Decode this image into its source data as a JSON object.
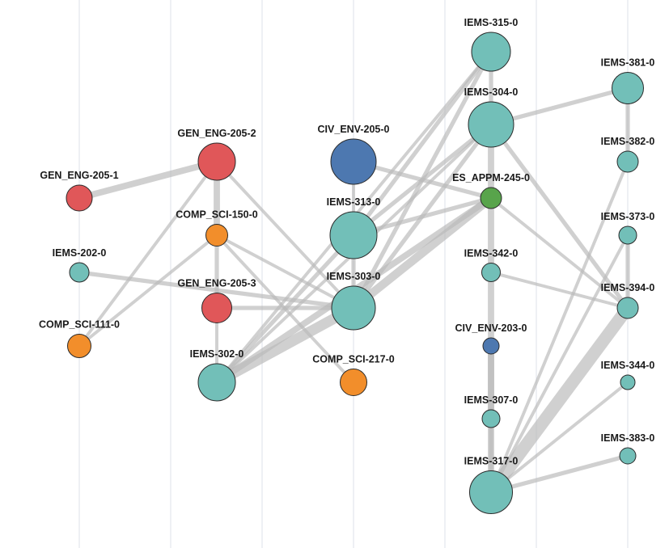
{
  "colors": {
    "red": "#e05759",
    "orange": "#f28e2b",
    "teal": "#72bfb8",
    "blue": "#4d78b0",
    "green": "#58a44b",
    "edge": "#b9b9b9",
    "grid": "#dde0ea"
  },
  "nodes": [
    {
      "id": "GEN_ENG-205-1",
      "label": "GEN_ENG-205-1",
      "color": "red",
      "weight": 2
    },
    {
      "id": "IEMS-202-0",
      "label": "IEMS-202-0",
      "color": "teal",
      "weight": 1
    },
    {
      "id": "COMP_SCI-111-0",
      "label": "COMP_SCI-111-0",
      "color": "orange",
      "weight": 1.5
    },
    {
      "id": "GEN_ENG-205-2",
      "label": "GEN_ENG-205-2",
      "color": "red",
      "weight": 4
    },
    {
      "id": "COMP_SCI-150-0",
      "label": "COMP_SCI-150-0",
      "color": "orange",
      "weight": 1.3
    },
    {
      "id": "GEN_ENG-205-3",
      "label": "GEN_ENG-205-3",
      "color": "red",
      "weight": 2.5
    },
    {
      "id": "IEMS-302-0",
      "label": "IEMS-302-0",
      "color": "teal",
      "weight": 4
    },
    {
      "id": "CIV_ENV-205-0",
      "label": "CIV_ENV-205-0",
      "color": "blue",
      "weight": 6
    },
    {
      "id": "IEMS-313-0",
      "label": "IEMS-313-0",
      "color": "teal",
      "weight": 6
    },
    {
      "id": "IEMS-303-0",
      "label": "IEMS-303-0",
      "color": "teal",
      "weight": 5.5
    },
    {
      "id": "COMP_SCI-217-0",
      "label": "COMP_SCI-217-0",
      "color": "orange",
      "weight": 2
    },
    {
      "id": "IEMS-315-0",
      "label": "IEMS-315-0",
      "color": "teal",
      "weight": 4.5
    },
    {
      "id": "IEMS-304-0",
      "label": "IEMS-304-0",
      "color": "teal",
      "weight": 6
    },
    {
      "id": "ES_APPM-245-0",
      "label": "ES_APPM-245-0",
      "color": "green",
      "weight": 1.3
    },
    {
      "id": "IEMS-342-0",
      "label": "IEMS-342-0",
      "color": "teal",
      "weight": 1
    },
    {
      "id": "CIV_ENV-203-0",
      "label": "CIV_ENV-203-0",
      "color": "blue",
      "weight": 0.8
    },
    {
      "id": "IEMS-307-0",
      "label": "IEMS-307-0",
      "color": "teal",
      "weight": 1
    },
    {
      "id": "IEMS-317-0",
      "label": "IEMS-317-0",
      "color": "teal",
      "weight": 5.5
    },
    {
      "id": "IEMS-381-0",
      "label": "IEMS-381-0",
      "color": "teal",
      "weight": 3.2
    },
    {
      "id": "IEMS-382-0",
      "label": "IEMS-382-0",
      "color": "teal",
      "weight": 1.5
    },
    {
      "id": "IEMS-373-0",
      "label": "IEMS-373-0",
      "color": "teal",
      "weight": 1
    },
    {
      "id": "IEMS-394-0",
      "label": "IEMS-394-0",
      "color": "teal",
      "weight": 1.5
    },
    {
      "id": "IEMS-344-0",
      "label": "IEMS-344-0",
      "color": "teal",
      "weight": 0.7
    },
    {
      "id": "IEMS-383-0",
      "label": "IEMS-383-0",
      "color": "teal",
      "weight": 0.9
    }
  ],
  "edges": [
    {
      "source": "GEN_ENG-205-1",
      "target": "GEN_ENG-205-2",
      "weight": 3
    },
    {
      "source": "IEMS-202-0",
      "target": "IEMS-303-0",
      "weight": 2
    },
    {
      "source": "COMP_SCI-111-0",
      "target": "GEN_ENG-205-2",
      "weight": 1.5
    },
    {
      "source": "COMP_SCI-111-0",
      "target": "COMP_SCI-150-0",
      "weight": 1.5
    },
    {
      "source": "GEN_ENG-205-2",
      "target": "COMP_SCI-150-0",
      "weight": 3
    },
    {
      "source": "COMP_SCI-150-0",
      "target": "GEN_ENG-205-3",
      "weight": 2
    },
    {
      "source": "GEN_ENG-205-2",
      "target": "IEMS-303-0",
      "weight": 1.5
    },
    {
      "source": "COMP_SCI-150-0",
      "target": "IEMS-303-0",
      "weight": 1.5
    },
    {
      "source": "COMP_SCI-150-0",
      "target": "COMP_SCI-217-0",
      "weight": 1.5
    },
    {
      "source": "GEN_ENG-205-3",
      "target": "IEMS-302-0",
      "weight": 1.5
    },
    {
      "source": "GEN_ENG-205-3",
      "target": "IEMS-303-0",
      "weight": 2
    },
    {
      "source": "IEMS-302-0",
      "target": "IEMS-313-0",
      "weight": 2
    },
    {
      "source": "IEMS-302-0",
      "target": "IEMS-303-0",
      "weight": 5
    },
    {
      "source": "IEMS-302-0",
      "target": "IEMS-315-0",
      "weight": 1.5
    },
    {
      "source": "IEMS-302-0",
      "target": "IEMS-304-0",
      "weight": 1.5
    },
    {
      "source": "IEMS-302-0",
      "target": "ES_APPM-245-0",
      "weight": 3
    },
    {
      "source": "CIV_ENV-205-0",
      "target": "IEMS-313-0",
      "weight": 1.5
    },
    {
      "source": "CIV_ENV-205-0",
      "target": "ES_APPM-245-0",
      "weight": 2
    },
    {
      "source": "IEMS-313-0",
      "target": "IEMS-303-0",
      "weight": 2
    },
    {
      "source": "IEMS-313-0",
      "target": "IEMS-315-0",
      "weight": 2
    },
    {
      "source": "IEMS-313-0",
      "target": "IEMS-304-0",
      "weight": 2
    },
    {
      "source": "IEMS-313-0",
      "target": "ES_APPM-245-0",
      "weight": 2
    },
    {
      "source": "IEMS-303-0",
      "target": "IEMS-315-0",
      "weight": 2
    },
    {
      "source": "IEMS-303-0",
      "target": "IEMS-304-0",
      "weight": 2
    },
    {
      "source": "IEMS-303-0",
      "target": "ES_APPM-245-0",
      "weight": 4
    },
    {
      "source": "IEMS-315-0",
      "target": "IEMS-304-0",
      "weight": 2
    },
    {
      "source": "IEMS-304-0",
      "target": "IEMS-381-0",
      "weight": 2
    },
    {
      "source": "IEMS-304-0",
      "target": "IEMS-394-0",
      "weight": 2
    },
    {
      "source": "IEMS-304-0",
      "target": "IEMS-317-0",
      "weight": 3
    },
    {
      "source": "ES_APPM-245-0",
      "target": "IEMS-394-0",
      "weight": 1.5
    },
    {
      "source": "IEMS-342-0",
      "target": "IEMS-394-0",
      "weight": 1.5
    },
    {
      "source": "CIV_ENV-203-0",
      "target": "IEMS-307-0",
      "weight": 3
    },
    {
      "source": "IEMS-307-0",
      "target": "IEMS-317-0",
      "weight": 2
    },
    {
      "source": "IEMS-317-0",
      "target": "IEMS-382-0",
      "weight": 1.5
    },
    {
      "source": "IEMS-317-0",
      "target": "IEMS-373-0",
      "weight": 1.5
    },
    {
      "source": "IEMS-317-0",
      "target": "IEMS-394-0",
      "weight": 6
    },
    {
      "source": "IEMS-317-0",
      "target": "IEMS-344-0",
      "weight": 1.5
    },
    {
      "source": "IEMS-317-0",
      "target": "IEMS-383-0",
      "weight": 2
    },
    {
      "source": "IEMS-381-0",
      "target": "IEMS-382-0",
      "weight": 2
    },
    {
      "source": "IEMS-373-0",
      "target": "IEMS-394-0",
      "weight": 2
    }
  ]
}
